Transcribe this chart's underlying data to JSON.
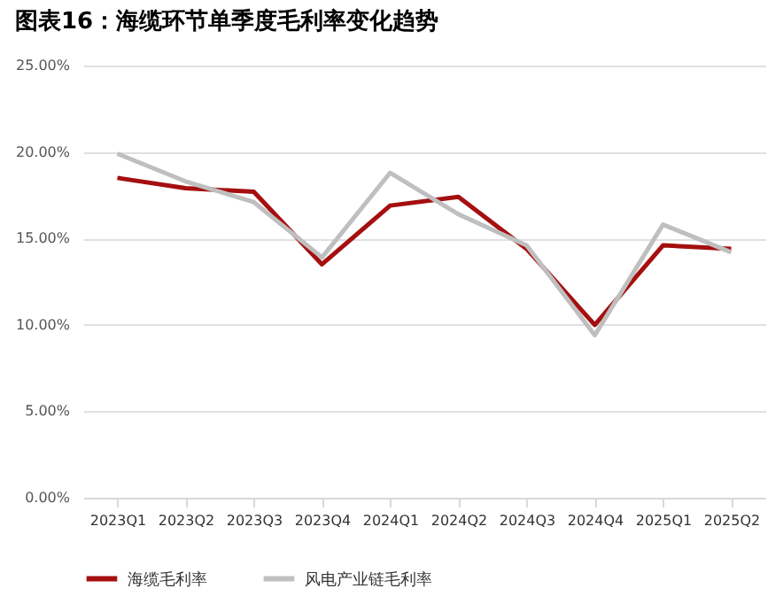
{
  "chart_data": {
    "type": "line",
    "title": "图表16：海缆环节单季度毛利率变化趋势",
    "categories": [
      "2023Q1",
      "2023Q2",
      "2023Q3",
      "2023Q4",
      "2024Q1",
      "2024Q2",
      "2024Q3",
      "2024Q4",
      "2025Q1",
      "2025Q2"
    ],
    "series": [
      {
        "name": "海缆毛利率",
        "color": "#a50f0f",
        "values": [
          18.5,
          17.9,
          17.7,
          13.5,
          16.9,
          17.4,
          14.4,
          10.0,
          14.6,
          14.4
        ]
      },
      {
        "name": "风电产业链毛利率",
        "color": "#bfbfbf",
        "values": [
          19.9,
          18.3,
          17.1,
          13.9,
          18.8,
          16.4,
          14.6,
          9.4,
          15.8,
          14.2
        ]
      }
    ],
    "ylim": [
      0,
      25
    ],
    "yticks": [
      {
        "value": 0,
        "label": "0.00%"
      },
      {
        "value": 5,
        "label": "5.00%"
      },
      {
        "value": 10,
        "label": "10.00%"
      },
      {
        "value": 15,
        "label": "15.00%"
      },
      {
        "value": 20,
        "label": "20.00%"
      },
      {
        "value": 25,
        "label": "25.00%"
      }
    ],
    "grid": "y",
    "legend": "bottom",
    "marker": "none",
    "line_style": "solid"
  }
}
